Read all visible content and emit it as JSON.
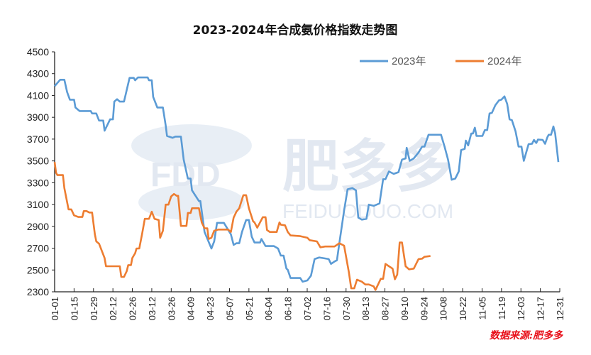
{
  "chart_data": {
    "type": "line",
    "title": "2023-2024年合成氨价格指数走势图",
    "xlabel": "",
    "ylabel": "",
    "ylim": [
      2300,
      4500
    ],
    "yticks": [
      4500,
      4300,
      4100,
      3900,
      3700,
      3500,
      3300,
      3100,
      2900,
      2700,
      2500,
      2300
    ],
    "xlim_days": [
      0,
      364
    ],
    "xtick_labels": [
      "01-01",
      "01-15",
      "01-29",
      "02-12",
      "02-26",
      "03-12",
      "03-26",
      "04-09",
      "04-23",
      "05-07",
      "05-21",
      "06-04",
      "06-18",
      "07-02",
      "07-16",
      "07-30",
      "08-13",
      "08-27",
      "09-10",
      "09-24",
      "10-08",
      "10-22",
      "11-05",
      "11-19",
      "12-03",
      "12-17",
      "12-31"
    ],
    "xtick_interval_days": 14,
    "grid": false,
    "legend_position": "top-right",
    "series": [
      {
        "name": "2023年",
        "color": "#5b9bd5",
        "points": [
          [
            0,
            4185
          ],
          [
            4,
            4244
          ],
          [
            7,
            4244
          ],
          [
            9,
            4131
          ],
          [
            11,
            4061
          ],
          [
            14,
            4061
          ],
          [
            15,
            3990
          ],
          [
            18,
            3957
          ],
          [
            26,
            3957
          ],
          [
            27,
            3935
          ],
          [
            30,
            3935
          ],
          [
            32,
            3870
          ],
          [
            35,
            3870
          ],
          [
            36,
            3777
          ],
          [
            40,
            3881
          ],
          [
            42,
            3881
          ],
          [
            43,
            4044
          ],
          [
            45,
            4066
          ],
          [
            47,
            4044
          ],
          [
            50,
            4044
          ],
          [
            54,
            4261
          ],
          [
            57,
            4261
          ],
          [
            58,
            4239
          ],
          [
            60,
            4265
          ],
          [
            67,
            4265
          ],
          [
            68,
            4239
          ],
          [
            70,
            4239
          ],
          [
            71,
            4087
          ],
          [
            74,
            3990
          ],
          [
            78,
            3990
          ],
          [
            80,
            3827
          ],
          [
            81,
            3729
          ],
          [
            85,
            3712
          ],
          [
            87,
            3723
          ],
          [
            91,
            3723
          ],
          [
            93,
            3512
          ],
          [
            96,
            3338
          ],
          [
            98,
            3338
          ],
          [
            99,
            3230
          ],
          [
            104,
            3132
          ],
          [
            105,
            3132
          ],
          [
            108,
            2849
          ],
          [
            113,
            2697
          ],
          [
            115,
            2762
          ],
          [
            117,
            2932
          ],
          [
            122,
            2932
          ],
          [
            127,
            2828
          ],
          [
            129,
            2730
          ],
          [
            131,
            2745
          ],
          [
            133,
            2745
          ],
          [
            135,
            2849
          ],
          [
            138,
            2958
          ],
          [
            140,
            2958
          ],
          [
            142,
            2806
          ],
          [
            144,
            2752
          ],
          [
            148,
            2752
          ],
          [
            149,
            2784
          ],
          [
            152,
            2719
          ],
          [
            158,
            2719
          ],
          [
            161,
            2697
          ],
          [
            163,
            2632
          ],
          [
            165,
            2632
          ],
          [
            167,
            2513
          ],
          [
            168,
            2502
          ],
          [
            170,
            2426
          ],
          [
            177,
            2426
          ],
          [
            178.7,
            2393
          ],
          [
            182.1,
            2404
          ],
          [
            184.7,
            2448
          ],
          [
            187.3,
            2600
          ],
          [
            190.7,
            2615
          ],
          [
            197.5,
            2600
          ],
          [
            199.2,
            2556
          ],
          [
            201.7,
            2578
          ],
          [
            203.4,
            2589
          ],
          [
            205.1,
            2741
          ],
          [
            208.6,
            3045
          ],
          [
            211.1,
            3240
          ],
          [
            214.5,
            3251
          ],
          [
            217.1,
            3230
          ],
          [
            218.8,
            2980
          ],
          [
            221.3,
            2962
          ],
          [
            224.7,
            2969
          ],
          [
            226.4,
            3099
          ],
          [
            229.9,
            3088
          ],
          [
            234.1,
            3110
          ],
          [
            236.7,
            3332
          ],
          [
            238.4,
            3332
          ],
          [
            240.9,
            3403
          ],
          [
            244.3,
            3381
          ],
          [
            247.8,
            3397
          ],
          [
            250.3,
            3512
          ],
          [
            252.9,
            3523
          ],
          [
            253.7,
            3620
          ],
          [
            255.8,
            3501
          ],
          [
            258.8,
            3523
          ],
          [
            262.2,
            3577
          ],
          [
            264.8,
            3631
          ],
          [
            266.5,
            3631
          ],
          [
            269.4,
            3740
          ],
          [
            278.4,
            3740
          ],
          [
            281,
            3631
          ],
          [
            283.5,
            3512
          ],
          [
            286.1,
            3327
          ],
          [
            288.7,
            3338
          ],
          [
            291.2,
            3403
          ],
          [
            292.9,
            3599
          ],
          [
            295.5,
            3610
          ],
          [
            296.3,
            3686
          ],
          [
            298,
            3642
          ],
          [
            300.2,
            3751
          ],
          [
            301.4,
            3751
          ],
          [
            302.8,
            3805
          ],
          [
            304,
            3729
          ],
          [
            308.2,
            3729
          ],
          [
            310,
            3783
          ],
          [
            311.7,
            3783
          ],
          [
            313.4,
            3935
          ],
          [
            315.1,
            3940
          ],
          [
            317.6,
            4011
          ],
          [
            320.2,
            4055
          ],
          [
            321.9,
            4061
          ],
          [
            324.1,
            4092
          ],
          [
            326.1,
            4022
          ],
          [
            327.8,
            3881
          ],
          [
            329.5,
            3874
          ],
          [
            332.1,
            3772
          ],
          [
            334.3,
            3631
          ],
          [
            336.4,
            3631
          ],
          [
            338.1,
            3501
          ],
          [
            341.5,
            3653
          ],
          [
            344,
            3657
          ],
          [
            345.4,
            3692
          ],
          [
            347.1,
            3664
          ],
          [
            348.3,
            3696
          ],
          [
            351.7,
            3692
          ],
          [
            353.4,
            3657
          ],
          [
            355.1,
            3718
          ],
          [
            356,
            3740
          ],
          [
            357.7,
            3740
          ],
          [
            359.4,
            3816
          ],
          [
            360.7,
            3751
          ],
          [
            363,
            3490
          ]
        ]
      },
      {
        "name": "2024年",
        "color": "#ed7d31",
        "points": [
          [
            0,
            3490
          ],
          [
            1,
            3392
          ],
          [
            2,
            3370
          ],
          [
            6,
            3370
          ],
          [
            7,
            3251
          ],
          [
            10,
            3056
          ],
          [
            12,
            3056
          ],
          [
            14,
            3001
          ],
          [
            17,
            2986
          ],
          [
            20,
            2986
          ],
          [
            21,
            3040
          ],
          [
            23,
            3040
          ],
          [
            25,
            3027
          ],
          [
            27,
            3027
          ],
          [
            29,
            2828
          ],
          [
            30,
            2762
          ],
          [
            32,
            2741
          ],
          [
            36,
            2610
          ],
          [
            37,
            2534
          ],
          [
            47,
            2534
          ],
          [
            48,
            2437
          ],
          [
            50,
            2437
          ],
          [
            52,
            2491
          ],
          [
            53,
            2545
          ],
          [
            55,
            2545
          ],
          [
            56,
            2610
          ],
          [
            58,
            2654
          ],
          [
            59,
            2697
          ],
          [
            61,
            2697
          ],
          [
            63,
            2828
          ],
          [
            65,
            2969
          ],
          [
            68,
            2969
          ],
          [
            70,
            3034
          ],
          [
            72,
            2969
          ],
          [
            75,
            2958
          ],
          [
            76,
            2795
          ],
          [
            78,
            2860
          ],
          [
            80,
            3099
          ],
          [
            82,
            3099
          ],
          [
            84,
            3175
          ],
          [
            86,
            3197
          ],
          [
            88,
            3180
          ],
          [
            89,
            3180
          ],
          [
            91,
            2904
          ],
          [
            95,
            2904
          ],
          [
            96,
            3023
          ],
          [
            98,
            3023
          ],
          [
            99,
            3066
          ],
          [
            104,
            3066
          ],
          [
            106,
            2936
          ],
          [
            108,
            2882
          ],
          [
            110,
            2882
          ],
          [
            111,
            2784
          ],
          [
            113,
            2795
          ],
          [
            115,
            2860
          ],
          [
            118,
            2871
          ],
          [
            125,
            2871
          ],
          [
            127,
            2849
          ],
          [
            129,
            2980
          ],
          [
            131,
            3034
          ],
          [
            133,
            3066
          ],
          [
            136,
            3186
          ],
          [
            138,
            3186
          ],
          [
            140,
            3066
          ],
          [
            143,
            2947
          ],
          [
            144,
            2936
          ],
          [
            146,
            2888
          ],
          [
            150,
            2984
          ],
          [
            152,
            2984
          ],
          [
            153,
            2867
          ],
          [
            155,
            2849
          ],
          [
            160,
            2849
          ],
          [
            162,
            2936
          ],
          [
            163,
            2915
          ],
          [
            166,
            2910
          ],
          [
            168,
            2849
          ],
          [
            170,
            2817
          ],
          [
            177,
            2810
          ],
          [
            182.1,
            2795
          ],
          [
            183.8,
            2773
          ],
          [
            189,
            2762
          ],
          [
            191.5,
            2708
          ],
          [
            194.9,
            2715
          ],
          [
            201.7,
            2715
          ],
          [
            205.1,
            2745
          ],
          [
            208.6,
            2723
          ],
          [
            212,
            2480
          ],
          [
            213.7,
            2332
          ],
          [
            215.9,
            2332
          ],
          [
            217.9,
            2411
          ],
          [
            221.3,
            2393
          ],
          [
            223.9,
            2367
          ],
          [
            226.4,
            2367
          ],
          [
            229.9,
            2350
          ],
          [
            231.2,
            2317
          ],
          [
            235,
            2419
          ],
          [
            236.7,
            2419
          ],
          [
            238.4,
            2556
          ],
          [
            240.9,
            2534
          ],
          [
            243.5,
            2513
          ],
          [
            245.2,
            2415
          ],
          [
            246.9,
            2458
          ],
          [
            248.6,
            2752
          ],
          [
            250.3,
            2752
          ],
          [
            252.9,
            2534
          ],
          [
            255.4,
            2506
          ],
          [
            258.8,
            2513
          ],
          [
            262.2,
            2600
          ],
          [
            264.8,
            2604
          ],
          [
            266.5,
            2621
          ],
          [
            270.8,
            2628
          ]
        ]
      }
    ]
  },
  "watermark": {
    "logo": "FDD",
    "name": "肥多多",
    "url": "FEIDUODUO.COM"
  },
  "source_note": "数据来源:肥多多"
}
